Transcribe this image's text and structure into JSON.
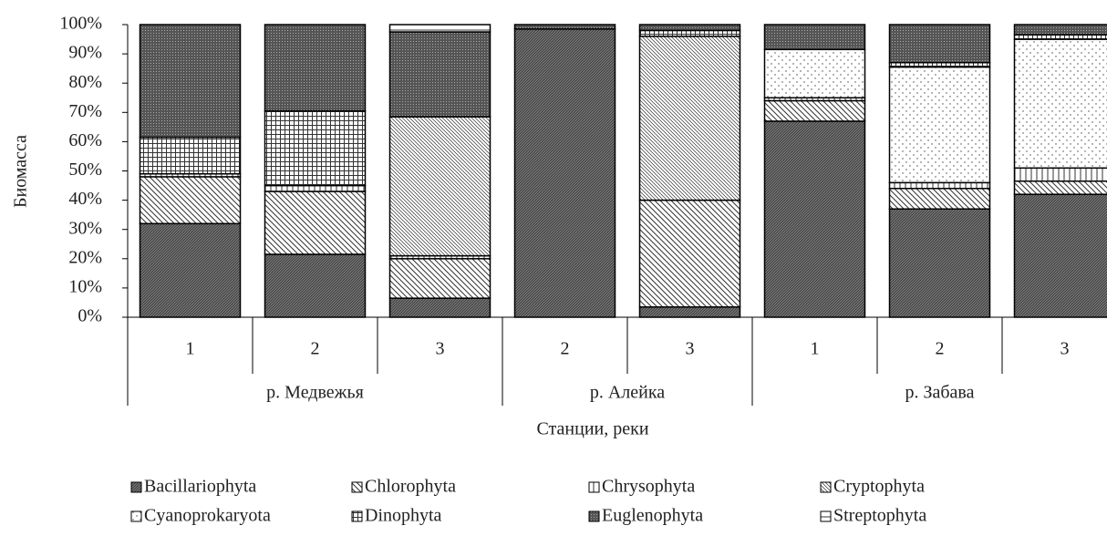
{
  "chart_data": {
    "type": "stacked_bar",
    "y_label": "Биомасса",
    "x_label": "Станции, реки",
    "groups": [
      {
        "label": "р. Медвежья",
        "categories": [
          "1",
          "2",
          "3"
        ]
      },
      {
        "label": "р. Алейка",
        "categories": [
          "2",
          "3"
        ]
      },
      {
        "label": "р. Забава",
        "categories": [
          "1",
          "2",
          "3"
        ]
      }
    ],
    "ylim": [
      0,
      100
    ],
    "yticks": [
      {
        "value": 0,
        "label": "0%"
      },
      {
        "value": 10,
        "label": "10%"
      },
      {
        "value": 20,
        "label": "20%"
      },
      {
        "value": 30,
        "label": "30%"
      },
      {
        "value": 40,
        "label": "40%"
      },
      {
        "value": 50,
        "label": "50%"
      },
      {
        "value": 60,
        "label": "60%"
      },
      {
        "value": 70,
        "label": "70%"
      },
      {
        "value": 80,
        "label": "80%"
      },
      {
        "value": 90,
        "label": "90%"
      },
      {
        "value": 100,
        "label": "100%"
      }
    ],
    "series": [
      {
        "name": "Bacillariophyta",
        "color": "#7a7a7a",
        "pattern": "dense",
        "values": [
          32,
          21.5,
          6.5,
          98.5,
          3.5,
          67,
          37,
          42
        ]
      },
      {
        "name": "Chlorophyta",
        "color": "#ffffff",
        "pattern": "diag-wide",
        "values": [
          16,
          21.5,
          13.5,
          0,
          36.5,
          7,
          7,
          4.5
        ]
      },
      {
        "name": "Chrysophyta",
        "color": "#ffffff",
        "pattern": "vertical",
        "values": [
          1,
          2,
          1,
          0,
          0,
          1,
          2,
          4.5
        ]
      },
      {
        "name": "Cryptophyta",
        "color": "#ffffff",
        "pattern": "diag-fine",
        "values": [
          0,
          0,
          47.5,
          0,
          56,
          0,
          0,
          0
        ]
      },
      {
        "name": "Cyanoprokaryota",
        "color": "#ffffff",
        "pattern": "dots",
        "values": [
          0,
          0,
          0,
          0,
          0,
          16.5,
          39.5,
          44
        ]
      },
      {
        "name": "Dinophyta",
        "color": "#ffffff",
        "pattern": "grid",
        "values": [
          12.5,
          25.5,
          0,
          0,
          2,
          0,
          1.5,
          1.5
        ]
      },
      {
        "name": "Euglenophyta",
        "color": "#555555",
        "pattern": "dark",
        "values": [
          38.5,
          29.5,
          29,
          1.5,
          2,
          8.5,
          13,
          3.5
        ]
      },
      {
        "name": "Streptophyta",
        "color": "#ffffff",
        "pattern": "horizontal",
        "values": [
          0,
          0,
          2.5,
          0,
          0,
          0,
          0,
          0
        ]
      }
    ]
  }
}
